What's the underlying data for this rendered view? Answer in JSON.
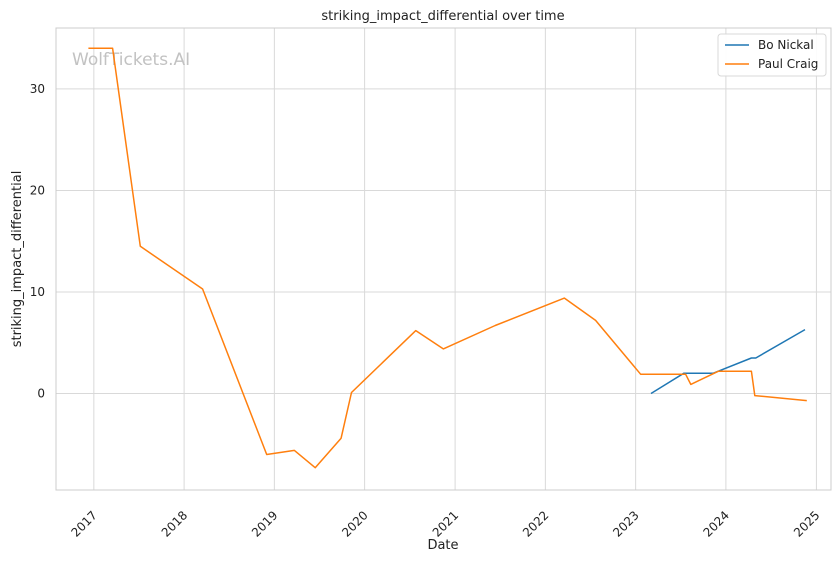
{
  "watermark": "WolfTickets.AI",
  "chart_data": {
    "type": "line",
    "title": "striking_impact_differential over time",
    "xlabel": "Date",
    "ylabel": "striking_impact_differential",
    "x_axis": "date",
    "xlim": [
      "2016-08-01",
      "2025-03-01"
    ],
    "ylim": [
      -9.5,
      36.0
    ],
    "x_ticks": [
      "2017",
      "2018",
      "2019",
      "2020",
      "2021",
      "2022",
      "2023",
      "2024",
      "2025"
    ],
    "y_ticks": [
      0,
      10,
      20,
      30
    ],
    "grid": true,
    "legend_position": "top-right",
    "series": [
      {
        "name": "Bo Nickal",
        "color": "#1f77b4",
        "points": [
          {
            "date": "2023-03-04",
            "value": 0.0
          },
          {
            "date": "2023-07-15",
            "value": 2.0
          },
          {
            "date": "2023-11-11",
            "value": 2.0
          },
          {
            "date": "2024-04-13",
            "value": 3.5
          },
          {
            "date": "2024-05-01",
            "value": 3.5
          },
          {
            "date": "2024-11-16",
            "value": 6.3
          }
        ]
      },
      {
        "name": "Paul Craig",
        "color": "#ff7f0e",
        "points": [
          {
            "date": "2016-12-10",
            "value": 34.0
          },
          {
            "date": "2017-03-18",
            "value": 34.0
          },
          {
            "date": "2017-07-08",
            "value": 14.5
          },
          {
            "date": "2018-03-17",
            "value": 10.3
          },
          {
            "date": "2018-12-01",
            "value": -6.0
          },
          {
            "date": "2019-03-23",
            "value": -5.6
          },
          {
            "date": "2019-06-15",
            "value": -7.3
          },
          {
            "date": "2019-09-28",
            "value": -4.4
          },
          {
            "date": "2019-11-09",
            "value": 0.1
          },
          {
            "date": "2020-07-26",
            "value": 6.2
          },
          {
            "date": "2020-11-14",
            "value": 4.4
          },
          {
            "date": "2021-06-12",
            "value": 6.7
          },
          {
            "date": "2022-03-19",
            "value": 9.4
          },
          {
            "date": "2022-07-23",
            "value": 7.2
          },
          {
            "date": "2023-01-21",
            "value": 1.9
          },
          {
            "date": "2023-07-22",
            "value": 1.9
          },
          {
            "date": "2023-08-12",
            "value": 0.9
          },
          {
            "date": "2023-12-02",
            "value": 2.2
          },
          {
            "date": "2024-04-13",
            "value": 2.2
          },
          {
            "date": "2024-04-27",
            "value": -0.2
          },
          {
            "date": "2024-11-23",
            "value": -0.7
          }
        ]
      }
    ]
  }
}
